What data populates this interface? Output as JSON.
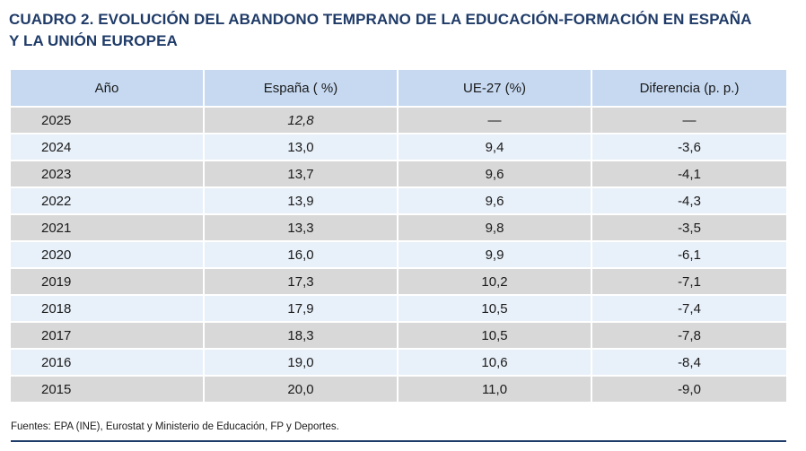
{
  "title_line1": "CUADRO 2. EVOLUCIÓN DEL ABANDONO TEMPRANO DE LA EDUCACIÓN-FORMACIÓN EN ESPAÑA",
  "title_line2": "Y LA UNIÓN EUROPEA",
  "headers": [
    "Año",
    "España ( %)",
    "UE-27 (%)",
    "Diferencia (p. p.)"
  ],
  "rows": [
    {
      "year": "2025",
      "spain": "12,8",
      "eu": "—",
      "diff": "—"
    },
    {
      "year": "2024",
      "spain": "13,0",
      "eu": "9,4",
      "diff": "-3,6"
    },
    {
      "year": "2023",
      "spain": "13,7",
      "eu": "9,6",
      "diff": "-4,1"
    },
    {
      "year": "2022",
      "spain": "13,9",
      "eu": "9,6",
      "diff": "-4,3"
    },
    {
      "year": "2021",
      "spain": "13,3",
      "eu": "9,8",
      "diff": "-3,5"
    },
    {
      "year": "2020",
      "spain": "16,0",
      "eu": "9,9",
      "diff": "-6,1"
    },
    {
      "year": "2019",
      "spain": "17,3",
      "eu": "10,2",
      "diff": "-7,1"
    },
    {
      "year": "2018",
      "spain": "17,9",
      "eu": "10,5",
      "diff": "-7,4"
    },
    {
      "year": "2017",
      "spain": "18,3",
      "eu": "10,5",
      "diff": "-7,8"
    },
    {
      "year": "2016",
      "spain": "19,0",
      "eu": "10,6",
      "diff": "-8,4"
    },
    {
      "year": "2015",
      "spain": "20,0",
      "eu": "11,0",
      "diff": "-9,0"
    }
  ],
  "source": "Fuentes: EPA (INE), Eurostat y  Ministerio de Educación, FP y Deportes.",
  "colors": {
    "title": "#1f3b68",
    "header_bg": "#c6d9f1",
    "row_gray": "#d8d8d8",
    "row_blue": "#e8f0f9"
  }
}
